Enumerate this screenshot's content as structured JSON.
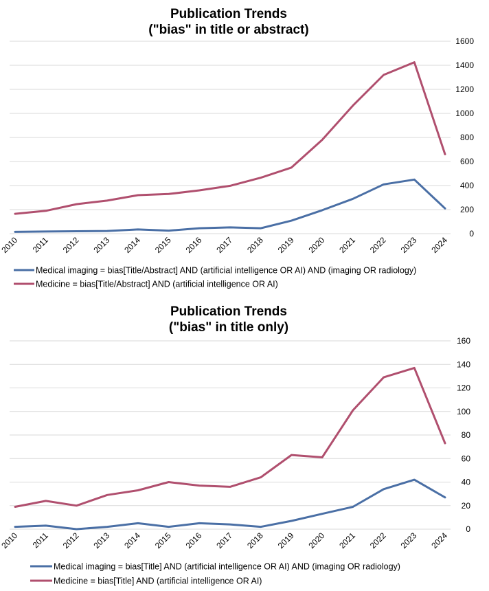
{
  "colors": {
    "imaging": "#4a6fa5",
    "medicine": "#b04f6e",
    "grid": "#d9d9d9"
  },
  "chart_data": [
    {
      "type": "line",
      "title": "Publication Trends",
      "subtitle": "(\"bias\" in title or abstract)",
      "categories": [
        "2010",
        "2011",
        "2012",
        "2013",
        "2014",
        "2015",
        "2016",
        "2017",
        "2018",
        "2019",
        "2020",
        "2021",
        "2022",
        "2023",
        "2024"
      ],
      "ylim": [
        0,
        1600
      ],
      "yticks": [
        "0",
        "200",
        "400",
        "600",
        "800",
        "1000",
        "1200",
        "1400",
        "1600"
      ],
      "ytick_values": [
        0,
        200,
        400,
        600,
        800,
        1000,
        1200,
        1400,
        1600
      ],
      "yaxis_position": "right",
      "grid": true,
      "legend_position": "bottom",
      "series": [
        {
          "name": "Medical imaging = bias[Title/Abstract] AND (artificial intelligence OR AI) AND (imaging OR radiology)",
          "color_key": "imaging",
          "values": [
            15,
            18,
            20,
            22,
            35,
            25,
            45,
            52,
            45,
            108,
            195,
            290,
            410,
            450,
            210
          ]
        },
        {
          "name": "Medicine = bias[Title/Abstract] AND (artificial intelligence OR AI)",
          "color_key": "medicine",
          "values": [
            165,
            190,
            245,
            275,
            320,
            330,
            360,
            398,
            465,
            550,
            780,
            1065,
            1320,
            1425,
            660
          ]
        }
      ]
    },
    {
      "type": "line",
      "title": "Publication Trends",
      "subtitle": "(\"bias\" in title only)",
      "categories": [
        "2010",
        "2011",
        "2012",
        "2013",
        "2014",
        "2015",
        "2016",
        "2017",
        "2018",
        "2019",
        "2020",
        "2021",
        "2022",
        "2023",
        "2024"
      ],
      "ylim": [
        0,
        160
      ],
      "yticks": [
        "0",
        "20",
        "40",
        "60",
        "80",
        "100",
        "120",
        "140",
        "160"
      ],
      "ytick_values": [
        0,
        20,
        40,
        60,
        80,
        100,
        120,
        140,
        160
      ],
      "yaxis_position": "right",
      "grid": true,
      "legend_position": "bottom",
      "series": [
        {
          "name": "Medical imaging = bias[Title] AND (artificial intelligence OR AI) AND (imaging OR radiology)",
          "color_key": "imaging",
          "values": [
            2,
            3,
            0,
            2,
            5,
            2,
            5,
            4,
            2,
            7,
            13,
            19,
            34,
            42,
            27
          ]
        },
        {
          "name": "Medicine = bias[Title] AND (artificial intelligence OR AI)",
          "color_key": "medicine",
          "values": [
            19,
            24,
            20,
            29,
            33,
            40,
            37,
            36,
            44,
            63,
            61,
            101,
            129,
            137,
            73
          ]
        }
      ]
    }
  ]
}
